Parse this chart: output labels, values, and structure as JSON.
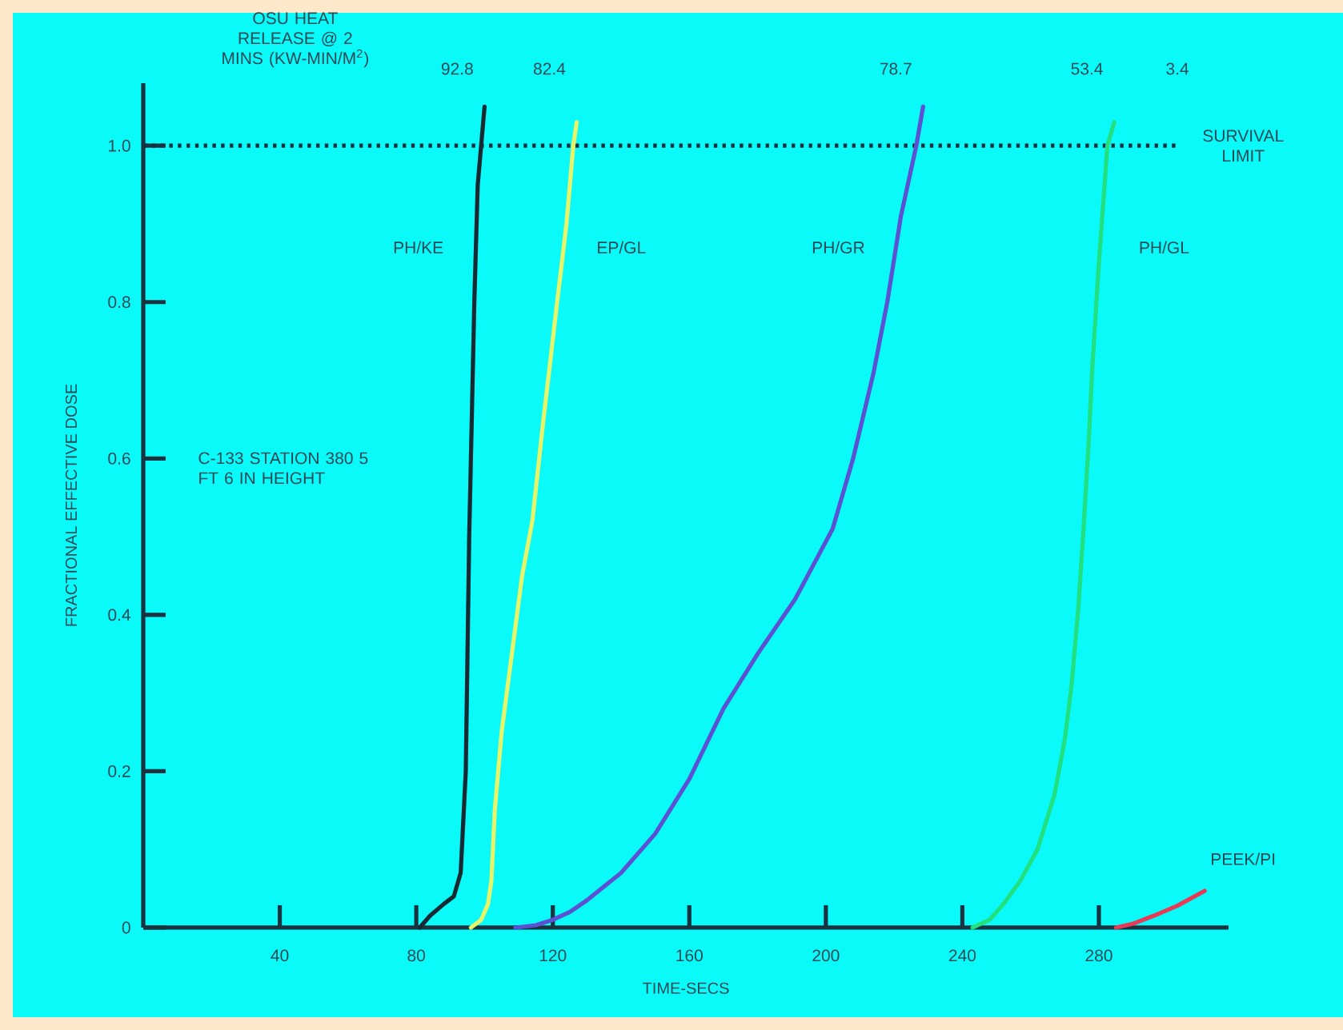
{
  "chart_data": {
    "type": "line",
    "title": "OSU HEAT RELEASE @ 2 MINS (KW-MIN/M$^{2}$)",
    "xlabel": "TIME-SECS",
    "ylabel": "FRACTIONAL EFFECTIVE DOSE",
    "xlim": [
      0,
      318
    ],
    "ylim": [
      0,
      1.08
    ],
    "xticks": [
      40,
      80,
      120,
      160,
      200,
      240,
      280
    ],
    "yticks": [
      0,
      0.2,
      0.4,
      0.6,
      0.8,
      {
        "value": 1,
        "label": "1.0"
      }
    ],
    "series": [
      {
        "name": "PH/KE",
        "color": "#152a33",
        "x": [
          81,
          84,
          88,
          91,
          93,
          94.5,
          95.5,
          97,
          98,
          99,
          100
        ],
        "values": [
          0,
          0.015,
          0.03,
          0.04,
          0.07,
          0.2,
          0.5,
          0.8,
          0.95,
          1.0,
          1.05
        ]
      },
      {
        "name": "EP/GL",
        "color": "#e6f46a",
        "x": [
          96,
          99,
          101,
          102,
          103,
          105,
          108,
          111,
          114,
          117,
          121,
          124,
          126,
          127
        ],
        "values": [
          0,
          0.01,
          0.03,
          0.06,
          0.15,
          0.25,
          0.35,
          0.45,
          0.52,
          0.64,
          0.79,
          0.9,
          1.0,
          1.03
        ]
      },
      {
        "name": "PH/GR",
        "color": "#5a52d2",
        "x": [
          109,
          115,
          120,
          125,
          130,
          140,
          150,
          160,
          170,
          180,
          191,
          202,
          208,
          214,
          218,
          222,
          226.5,
          228.5
        ],
        "values": [
          0,
          0.003,
          0.01,
          0.02,
          0.035,
          0.07,
          0.12,
          0.19,
          0.28,
          0.35,
          0.42,
          0.51,
          0.6,
          0.71,
          0.8,
          0.91,
          1.0,
          1.05
        ]
      },
      {
        "name": "PH/GL",
        "color": "#22e080",
        "x": [
          243,
          248,
          252,
          257,
          262,
          267,
          270,
          272,
          274,
          275.5,
          277,
          278,
          280,
          282.5,
          284.5
        ],
        "values": [
          0,
          0.01,
          0.03,
          0.06,
          0.1,
          0.17,
          0.24,
          0.31,
          0.41,
          0.51,
          0.62,
          0.71,
          0.85,
          1.0,
          1.03
        ]
      },
      {
        "name": "PEEK/PI",
        "color": "#e83a55",
        "x": [
          285,
          290,
          296,
          303,
          311
        ],
        "values": [
          0,
          0.005,
          0.015,
          0.028,
          0.047
        ]
      }
    ],
    "ref_lines": [
      {
        "axis": "y",
        "value": 1,
        "label": "SURVIVAL LIMIT",
        "line_style": "dotted",
        "color": "#1a3040"
      }
    ],
    "annotations": [
      "C-133 STATION 380 5 FT 6 IN HEIGHT",
      "92.8",
      "82.4",
      "78.7",
      "53.4",
      "3.4"
    ]
  }
}
